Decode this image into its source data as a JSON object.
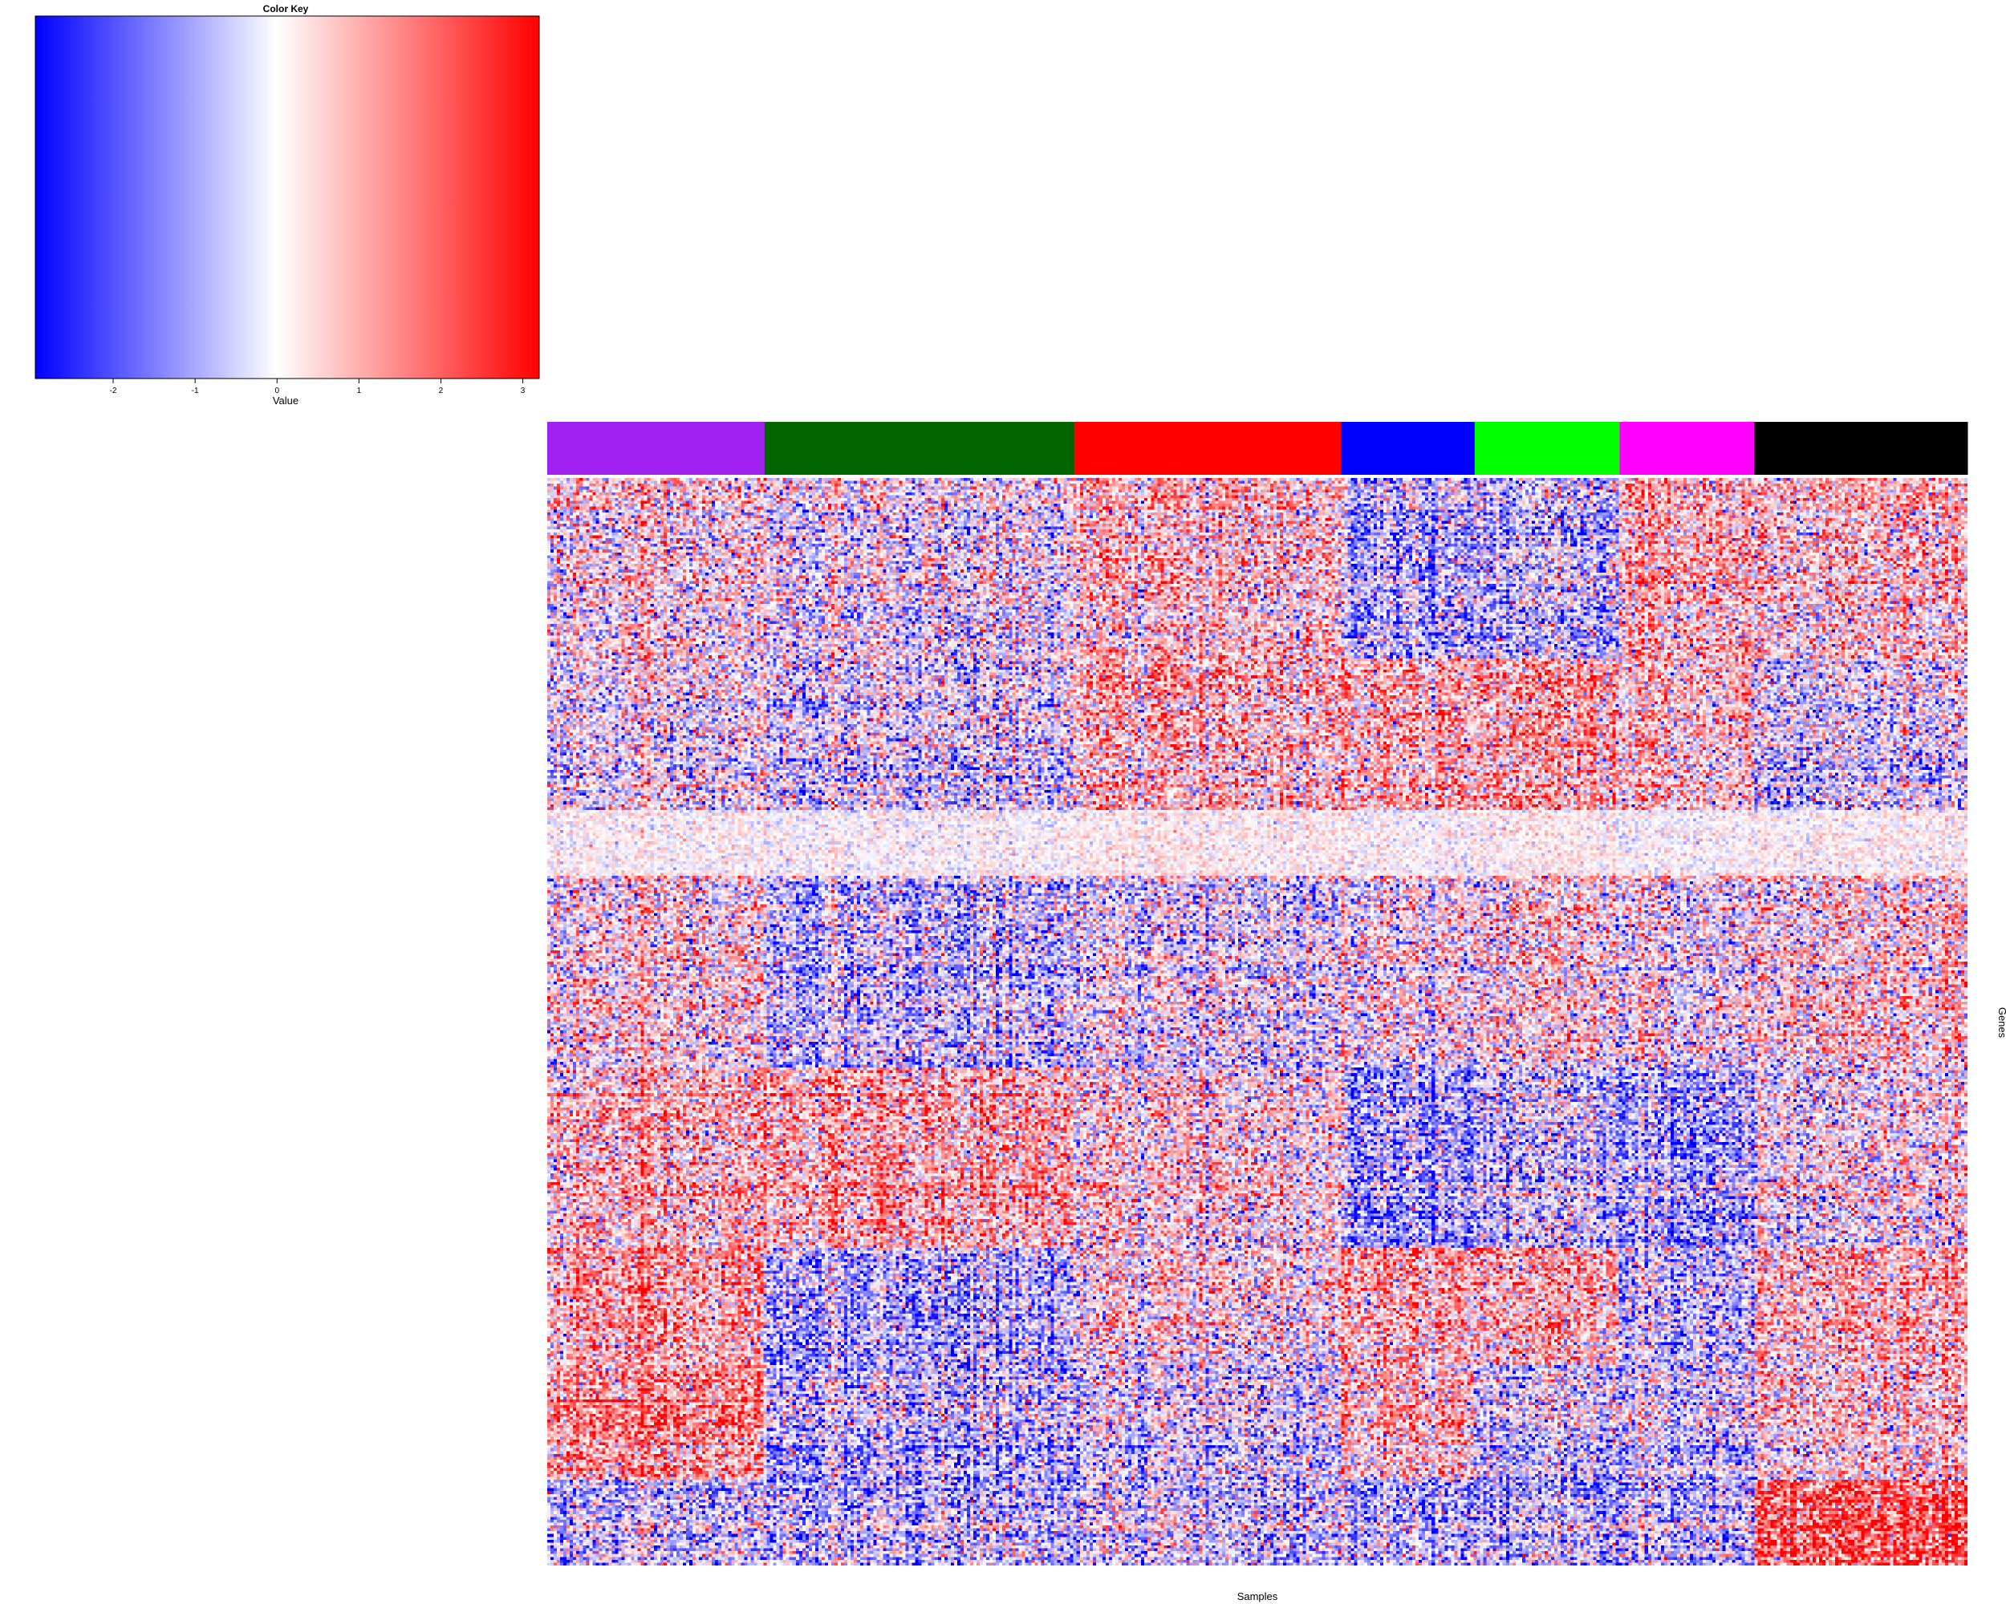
{
  "chart_data": {
    "type": "heatmap",
    "color_key": {
      "title": "Color Key",
      "xlabel": "Value",
      "ticks": [
        -2,
        -1,
        0,
        1,
        2,
        3
      ],
      "range": [
        -2.95,
        3.2
      ],
      "colors": {
        "low": "#0000FF",
        "mid": "#FFFFFF",
        "high": "#FF0000"
      }
    },
    "xlabel": "Samples",
    "ylabel": "Genes",
    "sample_groups": [
      {
        "color": "#A020F0",
        "fraction": 0.153
      },
      {
        "color": "#006400",
        "fraction": 0.218
      },
      {
        "color": "#FF0000",
        "fraction": 0.188
      },
      {
        "color": "#0000FF",
        "fraction": 0.094
      },
      {
        "color": "#00FF00",
        "fraction": 0.102
      },
      {
        "color": "#FF00FF",
        "fraction": 0.095
      },
      {
        "color": "#000000",
        "fraction": 0.15
      }
    ],
    "gene_clusters": [
      {
        "fraction": 0.165,
        "means": [
          0.1,
          -0.2,
          0.5,
          -0.8,
          -0.7,
          0.8,
          0.6
        ]
      },
      {
        "fraction": 0.14,
        "means": [
          -0.2,
          -0.4,
          0.7,
          1.0,
          1.1,
          0.6,
          -0.3
        ]
      },
      {
        "fraction": 0.062,
        "means": [
          0.05,
          0.0,
          0.15,
          0.05,
          0.2,
          0.0,
          0.1
        ]
      },
      {
        "fraction": 0.175,
        "means": [
          0.2,
          -0.7,
          -0.3,
          0.2,
          0.4,
          0.0,
          0.5
        ]
      },
      {
        "fraction": 0.165,
        "means": [
          0.6,
          0.9,
          0.2,
          -1.0,
          -0.6,
          -1.1,
          0.1
        ]
      },
      {
        "fraction": 0.108,
        "means": [
          1.0,
          -0.9,
          0.2,
          1.1,
          1.0,
          -0.6,
          0.9
        ]
      },
      {
        "fraction": 0.107,
        "means": [
          1.2,
          -0.8,
          -0.5,
          0.8,
          -0.5,
          -0.5,
          0.5
        ]
      },
      {
        "fraction": 0.078,
        "means": [
          -0.6,
          -0.7,
          -0.5,
          -0.6,
          -0.7,
          -0.7,
          2.2
        ]
      }
    ],
    "grid": false
  }
}
